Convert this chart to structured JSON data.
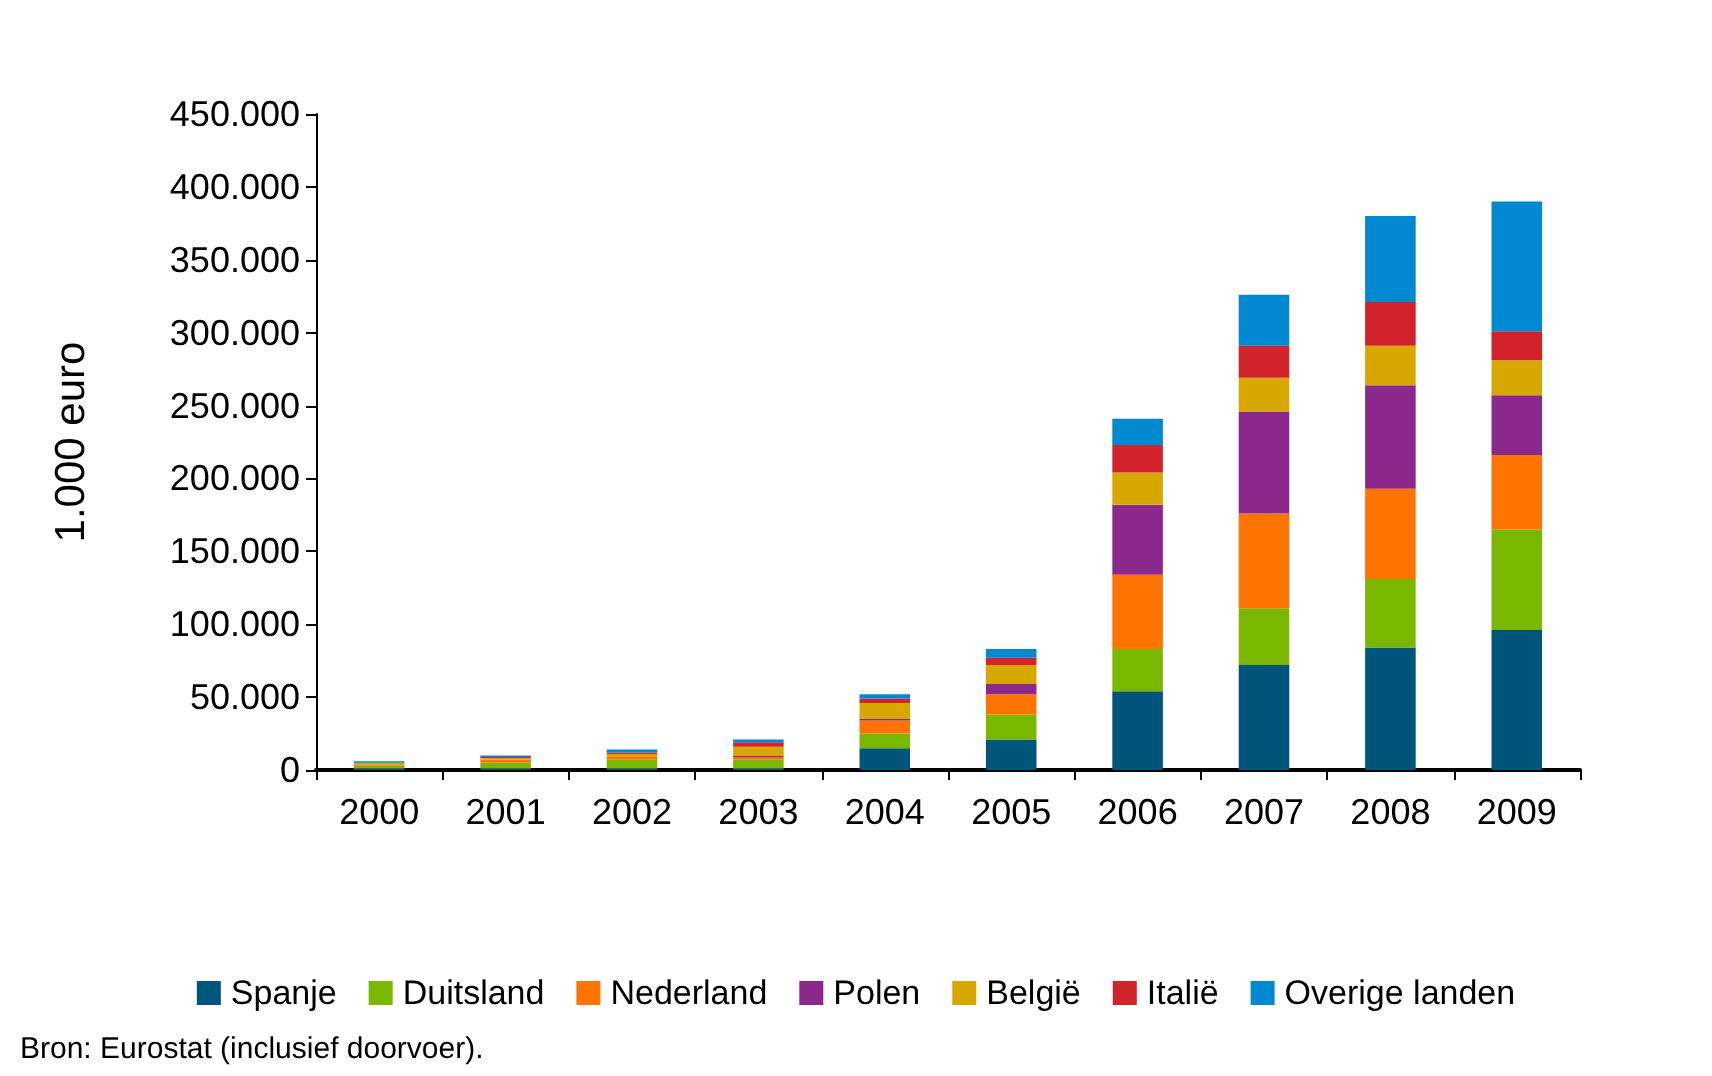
{
  "chart_data": {
    "type": "bar",
    "stacked": true,
    "ylabel": "1.000 euro",
    "categories": [
      "2000",
      "2001",
      "2002",
      "2003",
      "2004",
      "2005",
      "2006",
      "2007",
      "2008",
      "2009"
    ],
    "series": [
      {
        "name": "Spanje",
        "color": "#00557a",
        "values": [
          1000,
          1000,
          1000,
          1000,
          15000,
          21000,
          54000,
          72000,
          84000,
          96000
        ]
      },
      {
        "name": "Duitsland",
        "color": "#7ab800",
        "values": [
          2000,
          4000,
          6000,
          6000,
          10000,
          17000,
          29000,
          39000,
          47000,
          69000
        ]
      },
      {
        "name": "Nederland",
        "color": "#ff7300",
        "values": [
          1000,
          2000,
          2000,
          2000,
          9000,
          14000,
          51000,
          65000,
          62000,
          51000
        ]
      },
      {
        "name": "Polen",
        "color": "#8c288c",
        "values": [
          0,
          0,
          0,
          1000,
          1000,
          7000,
          48000,
          70000,
          71000,
          41000
        ]
      },
      {
        "name": "België",
        "color": "#d7a900",
        "values": [
          1000,
          1000,
          2000,
          6000,
          11000,
          13000,
          22000,
          23000,
          27000,
          24000
        ]
      },
      {
        "name": "Italië",
        "color": "#d2232d",
        "values": [
          0,
          1000,
          1000,
          3000,
          3000,
          5000,
          19000,
          22000,
          30000,
          20000
        ]
      },
      {
        "name": "Overige landen",
        "color": "#0088d0",
        "values": [
          1000,
          1000,
          2000,
          2000,
          3000,
          6000,
          18000,
          35000,
          59000,
          89000
        ]
      }
    ],
    "ylim": [
      0,
      450000
    ],
    "yticks": [
      {
        "value": 0,
        "label": "0"
      },
      {
        "value": 50000,
        "label": "50.000"
      },
      {
        "value": 100000,
        "label": "100.000"
      },
      {
        "value": 150000,
        "label": "150.000"
      },
      {
        "value": 200000,
        "label": "200.000"
      },
      {
        "value": 250000,
        "label": "250.000"
      },
      {
        "value": 300000,
        "label": "300.000"
      },
      {
        "value": 350000,
        "label": "350.000"
      },
      {
        "value": 400000,
        "label": "400.000"
      },
      {
        "value": 450000,
        "label": "450.000"
      }
    ],
    "grid": false,
    "legend": "bottom",
    "annotations": [
      "Bron: Eurostat (inclusief doorvoer)."
    ]
  }
}
